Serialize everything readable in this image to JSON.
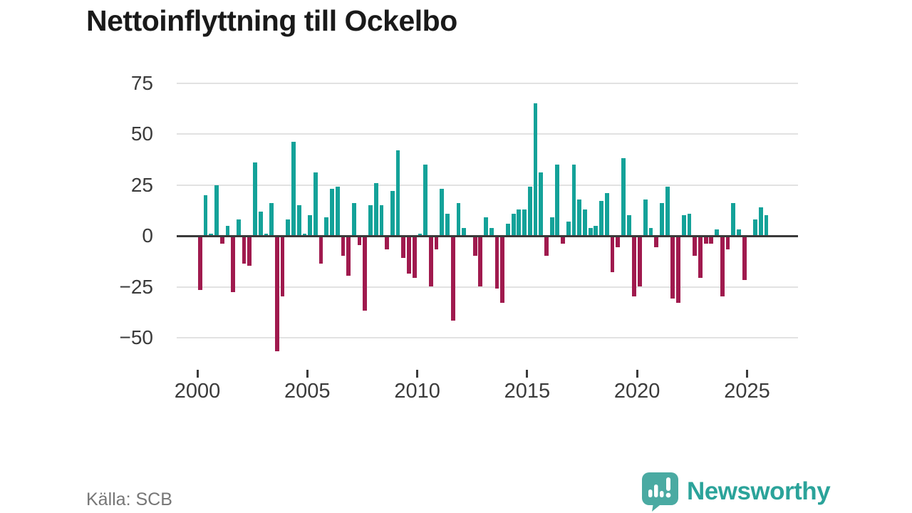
{
  "header": {
    "title": "Nettoinflyttning till Ockelbo"
  },
  "footer": {
    "source": "Källa: SCB",
    "brand": "Newsworthy"
  },
  "colors": {
    "positive": "#14a299",
    "negative": "#a01a4e",
    "grid": "#e2e2e2",
    "zero_line": "#3a3a3a",
    "axis_text": "#3b3b3b",
    "title_text": "#1a1a1a",
    "source_text": "#767676",
    "brand_teal": "#2ba39a"
  },
  "chart_data": {
    "type": "bar",
    "title": "Nettoinflyttning till Ockelbo",
    "xlabel": "",
    "ylabel": "",
    "period": "quarterly",
    "x_range": [
      "2000 Q1",
      "2025 Q4"
    ],
    "ylim": [
      -60,
      80
    ],
    "grid": "horizontal-only",
    "legend": "none",
    "yticks": [
      {
        "label": "75",
        "value": 75
      },
      {
        "label": "50",
        "value": 50
      },
      {
        "label": "25",
        "value": 25
      },
      {
        "label": "0",
        "value": 0
      },
      {
        "label": "−25",
        "value": -25
      },
      {
        "label": "−50",
        "value": -50
      }
    ],
    "xticks": [
      {
        "label": "2000",
        "year": 2000
      },
      {
        "label": "2005",
        "year": 2005
      },
      {
        "label": "2010",
        "year": 2010
      },
      {
        "label": "2015",
        "year": 2015
      },
      {
        "label": "2020",
        "year": 2020
      },
      {
        "label": "2025",
        "year": 2025
      }
    ],
    "series_by_year": [
      {
        "year": 2000,
        "values": [
          -26,
          20,
          1,
          25
        ]
      },
      {
        "year": 2001,
        "values": [
          -3,
          5,
          -27,
          8
        ]
      },
      {
        "year": 2002,
        "values": [
          -13,
          -14,
          36,
          12
        ]
      },
      {
        "year": 2003,
        "values": [
          1,
          16,
          -56,
          -29
        ]
      },
      {
        "year": 2004,
        "values": [
          8,
          46,
          15,
          1
        ]
      },
      {
        "year": 2005,
        "values": [
          10,
          31,
          -13,
          9
        ]
      },
      {
        "year": 2006,
        "values": [
          23,
          24,
          -9,
          -19
        ]
      },
      {
        "year": 2007,
        "values": [
          16,
          -4,
          -36,
          15
        ]
      },
      {
        "year": 2008,
        "values": [
          26,
          15,
          -6,
          22
        ]
      },
      {
        "year": 2009,
        "values": [
          42,
          -10,
          -18,
          -20
        ]
      },
      {
        "year": 2010,
        "values": [
          1,
          35,
          -24,
          -6
        ]
      },
      {
        "year": 2011,
        "values": [
          23,
          11,
          -41,
          16
        ]
      },
      {
        "year": 2012,
        "values": [
          4,
          0,
          -9,
          -24
        ]
      },
      {
        "year": 2013,
        "values": [
          9,
          4,
          -25,
          -32
        ]
      },
      {
        "year": 2014,
        "values": [
          6,
          11,
          13,
          13
        ]
      },
      {
        "year": 2015,
        "values": [
          24,
          65,
          31,
          -9
        ]
      },
      {
        "year": 2016,
        "values": [
          9,
          35,
          -3,
          7
        ]
      },
      {
        "year": 2017,
        "values": [
          35,
          18,
          13,
          4
        ]
      },
      {
        "year": 2018,
        "values": [
          5,
          17,
          21,
          -17
        ]
      },
      {
        "year": 2019,
        "values": [
          -5,
          38,
          10,
          -29
        ]
      },
      {
        "year": 2020,
        "values": [
          -24,
          18,
          4,
          -5
        ]
      },
      {
        "year": 2021,
        "values": [
          16,
          24,
          -30,
          -32
        ]
      },
      {
        "year": 2022,
        "values": [
          10,
          11,
          -9,
          -20
        ]
      },
      {
        "year": 2023,
        "values": [
          -3,
          -3,
          3,
          -29
        ]
      },
      {
        "year": 2024,
        "values": [
          -6,
          16,
          3,
          -21
        ]
      },
      {
        "year": 2025,
        "values": [
          0,
          8,
          14,
          10
        ]
      }
    ]
  }
}
